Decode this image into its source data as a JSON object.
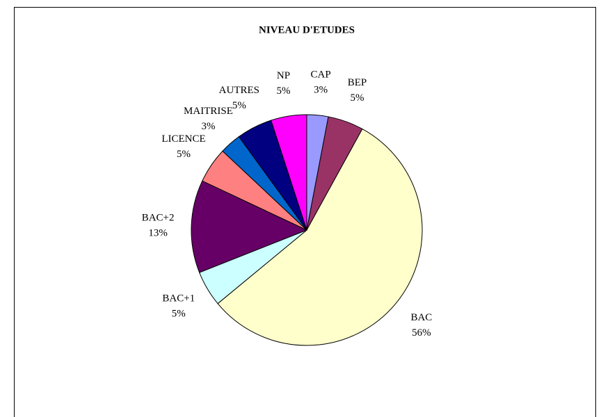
{
  "chart_data": {
    "type": "pie",
    "title": "NIVEAU D'ETUDES",
    "categories": [
      "CAP",
      "BEP",
      "BAC",
      "BAC+1",
      "BAC+2",
      "LICENCE",
      "MAITRISE",
      "AUTRES",
      "NP"
    ],
    "values": [
      3,
      5,
      56,
      5,
      13,
      5,
      3,
      5,
      5
    ],
    "value_labels": [
      "3%",
      "5%",
      "56%",
      "5%",
      "13%",
      "5%",
      "3%",
      "5%",
      "5%"
    ],
    "colors": [
      "#9999ff",
      "#993366",
      "#ffffcc",
      "#ccffff",
      "#660066",
      "#ff8080",
      "#0066cc",
      "#000080",
      "#ff00ff"
    ]
  }
}
